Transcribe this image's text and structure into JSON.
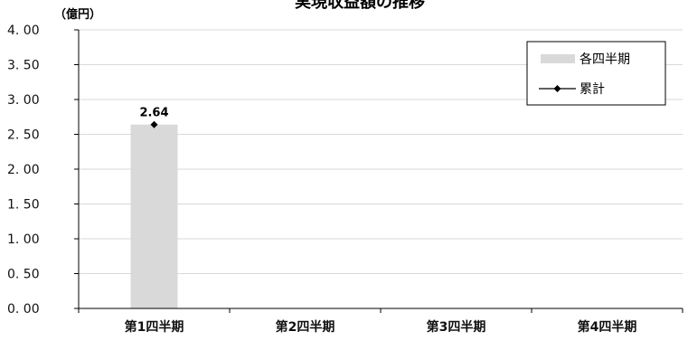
{
  "chart_data": {
    "type": "bar",
    "title": "実現収益額の推移",
    "ylabel": "（億円）",
    "xlabel": "",
    "categories": [
      "第1四半期",
      "第2四半期",
      "第3四半期",
      "第4四半期"
    ],
    "ylim": [
      0,
      4.0
    ],
    "yticks": [
      "0. 00",
      "0. 50",
      "1. 00",
      "1. 50",
      "2. 00",
      "2. 50",
      "3. 00",
      "3. 50",
      "4. 00"
    ],
    "grid": true,
    "legend_position": "top-right",
    "series": [
      {
        "name": "各四半期",
        "type": "bar",
        "color": "#d9d9d9",
        "values": [
          2.64,
          null,
          null,
          null
        ]
      },
      {
        "name": "累計",
        "type": "line",
        "color": "#000000",
        "marker": "diamond",
        "values": [
          2.64,
          null,
          null,
          null
        ]
      }
    ],
    "data_labels": [
      "2.64",
      null,
      null,
      null
    ]
  }
}
